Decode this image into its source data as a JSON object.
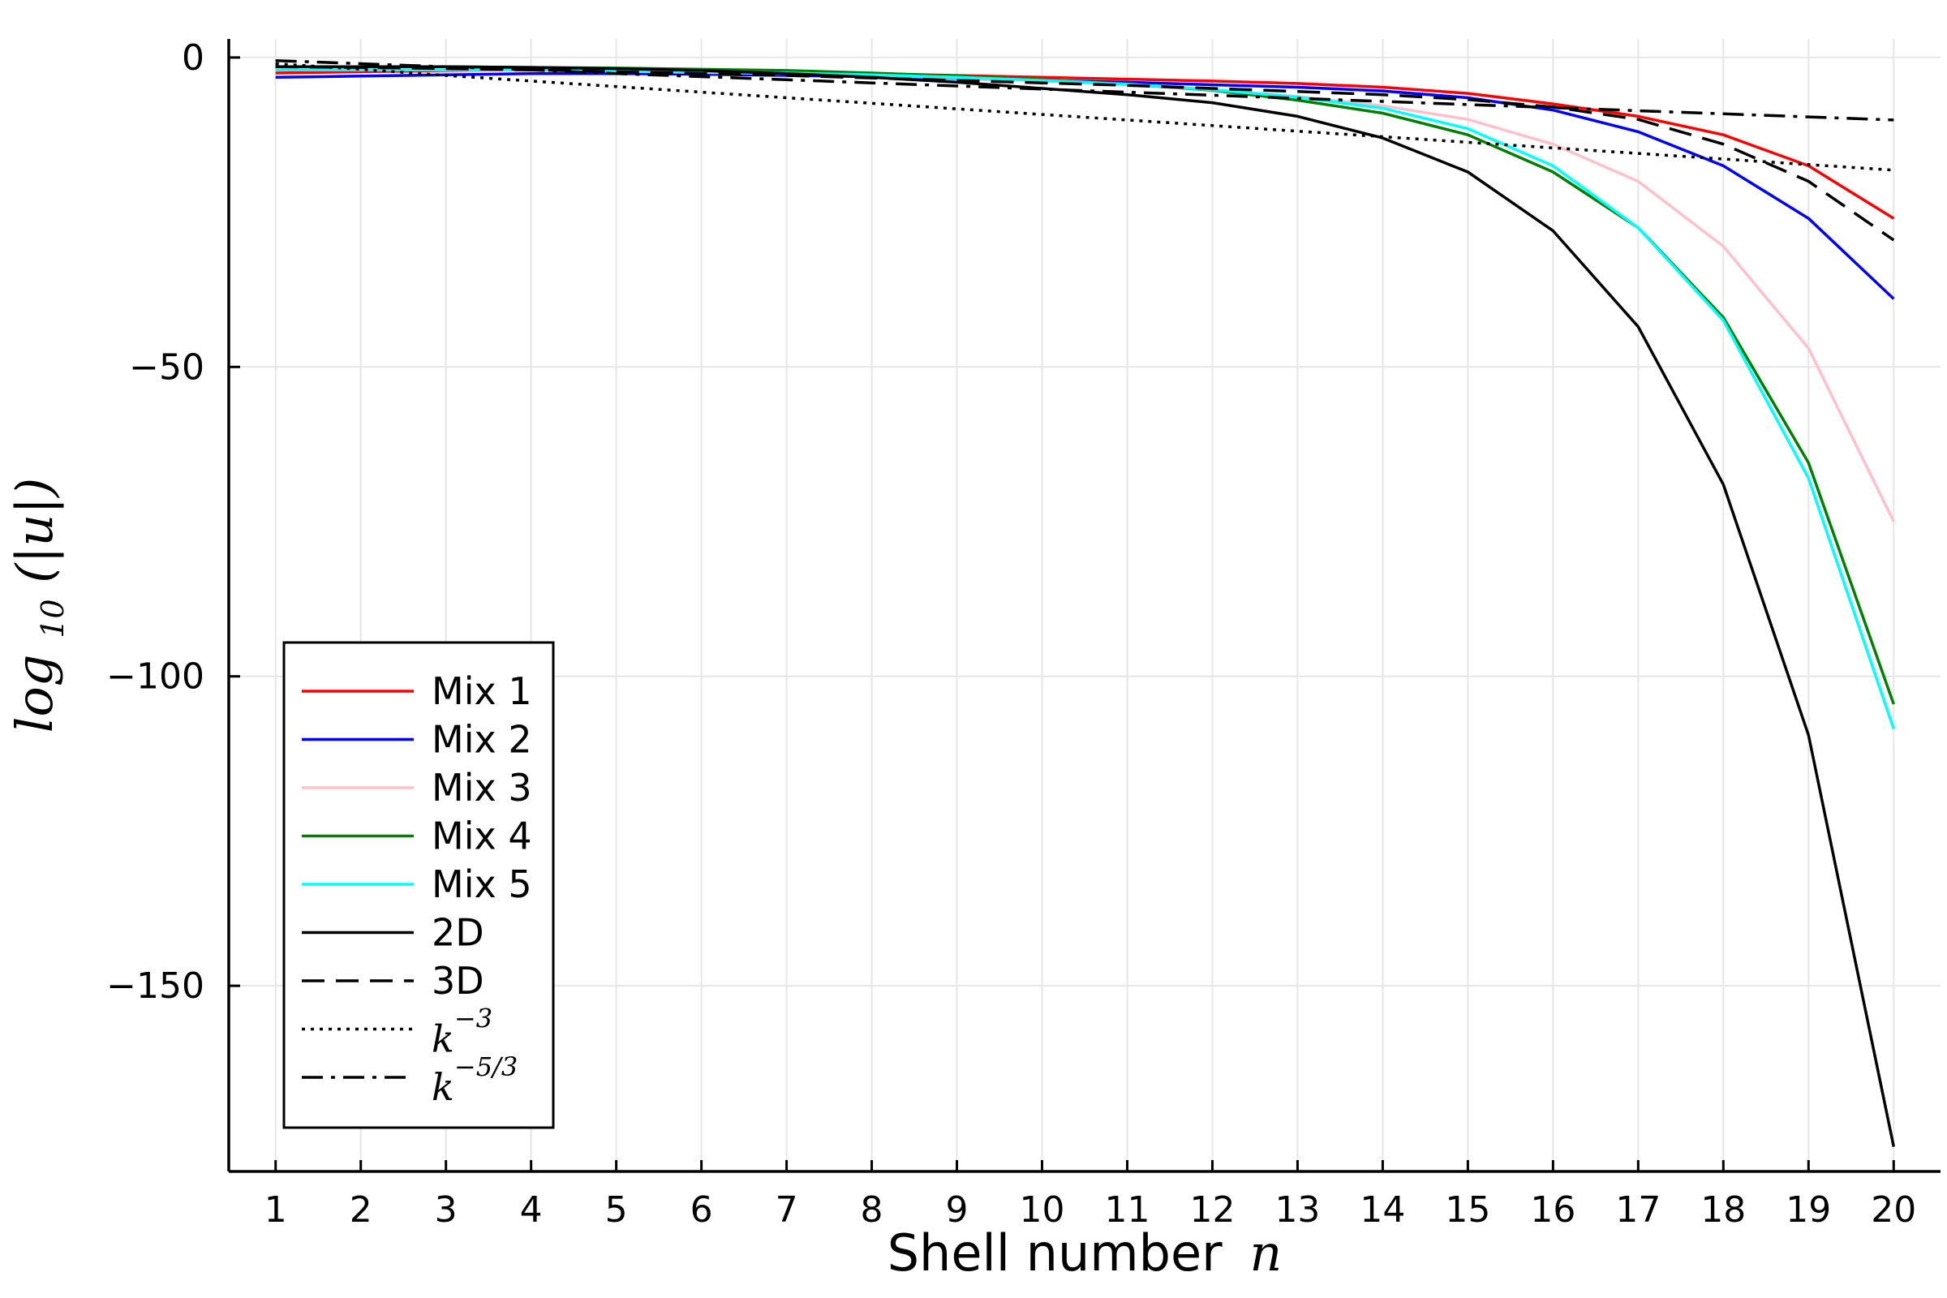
{
  "chart_data": {
    "type": "line",
    "xlabel": "Shell number",
    "xlabel_var": "n",
    "ylabel_fn": "log",
    "ylabel_sub": "10",
    "ylabel_arg": "(|u|)",
    "x": [
      1,
      2,
      3,
      4,
      5,
      6,
      7,
      8,
      9,
      10,
      11,
      12,
      13,
      14,
      15,
      16,
      17,
      18,
      19,
      20
    ],
    "xticks": [
      1,
      2,
      3,
      4,
      5,
      6,
      7,
      8,
      9,
      10,
      11,
      12,
      13,
      14,
      15,
      16,
      17,
      18,
      19,
      20
    ],
    "yticks": [
      0,
      -50,
      -100,
      -150
    ],
    "ytick_labels": [
      "0",
      "−50",
      "−100",
      "−150"
    ],
    "xlim": [
      0.45,
      20.55
    ],
    "ylim": [
      -180,
      3
    ],
    "grid": true,
    "legend_position": "bottom-left",
    "series": [
      {
        "name": "Mix 1",
        "color": "#ff0000",
        "dash": "solid",
        "values": [
          -2.5,
          -2.3,
          -2.1,
          -2.0,
          -2.0,
          -2.1,
          -2.3,
          -2.6,
          -2.9,
          -3.2,
          -3.5,
          -3.8,
          -4.2,
          -4.8,
          -5.8,
          -7.5,
          -9.5,
          -12.5,
          -17.5,
          -26
        ]
      },
      {
        "name": "Mix 2",
        "color": "#0000ff",
        "dash": "solid",
        "values": [
          -3.2,
          -3.0,
          -2.8,
          -2.6,
          -2.6,
          -2.7,
          -2.9,
          -3.1,
          -3.4,
          -3.7,
          -4.0,
          -4.4,
          -4.8,
          -5.4,
          -6.5,
          -8.5,
          -12,
          -17.5,
          -26,
          -39
        ]
      },
      {
        "name": "Mix 3",
        "color": "#ffc0cb",
        "dash": "solid",
        "values": [
          -2.0,
          -2.0,
          -2.0,
          -2.1,
          -2.2,
          -2.4,
          -2.6,
          -2.9,
          -3.3,
          -3.8,
          -4.4,
          -5.2,
          -6.3,
          -7.8,
          -10,
          -14,
          -20,
          -30.5,
          -47,
          -75
        ]
      },
      {
        "name": "Mix 4",
        "color": "#008000",
        "dash": "solid",
        "values": [
          -1.5,
          -1.5,
          -1.5,
          -1.6,
          -1.7,
          -1.9,
          -2.1,
          -2.5,
          -3.0,
          -3.6,
          -4.3,
          -5.3,
          -6.9,
          -9.0,
          -12.5,
          -18.5,
          -27.5,
          -42,
          -65.5,
          -104.5
        ]
      },
      {
        "name": "Mix 5",
        "color": "#00ffff",
        "dash": "solid",
        "values": [
          -2.0,
          -2.0,
          -2.0,
          -2.0,
          -2.1,
          -2.3,
          -2.5,
          -2.8,
          -3.2,
          -3.7,
          -4.3,
          -5.2,
          -6.4,
          -8.2,
          -11.5,
          -17.5,
          -27.5,
          -42.5,
          -68,
          -108.5
        ]
      },
      {
        "name": "2D",
        "color": "#000000",
        "dash": "solid",
        "values": [
          -1.5,
          -1.5,
          -1.5,
          -1.6,
          -1.8,
          -2.1,
          -2.6,
          -3.2,
          -4.0,
          -5.0,
          -6.0,
          -7.3,
          -9.5,
          -13,
          -18.5,
          -28,
          -43.5,
          -69,
          -109.5,
          -176
        ]
      },
      {
        "name": "3D",
        "color": "#000000",
        "dash": "dashed",
        "values": [
          -1.5,
          -1.6,
          -1.8,
          -2.0,
          -2.3,
          -2.6,
          -2.9,
          -3.3,
          -3.7,
          -4.1,
          -4.5,
          -5.0,
          -5.5,
          -6.0,
          -6.8,
          -8.0,
          -10,
          -14,
          -20,
          -29.5
        ]
      },
      {
        "name": "k^{-3}",
        "name_base": "k",
        "name_exp": "−3",
        "color": "#000000",
        "dash": "dotted",
        "values": [
          -1.0,
          -1.9,
          -2.9,
          -3.8,
          -4.7,
          -5.6,
          -6.5,
          -7.4,
          -8.3,
          -9.2,
          -10.1,
          -11.0,
          -11.9,
          -12.8,
          -13.7,
          -14.6,
          -15.5,
          -16.4,
          -17.3,
          -18.2
        ]
      },
      {
        "name": "k^{-5/3}",
        "name_base": "k",
        "name_exp": "−5/3",
        "color": "#000000",
        "dash": "dashdot",
        "values": [
          -0.5,
          -1.0,
          -1.5,
          -2.0,
          -2.6,
          -3.1,
          -3.6,
          -4.1,
          -4.6,
          -5.1,
          -5.6,
          -6.1,
          -6.6,
          -7.1,
          -7.6,
          -8.1,
          -8.6,
          -9.1,
          -9.6,
          -10.1
        ]
      }
    ]
  }
}
